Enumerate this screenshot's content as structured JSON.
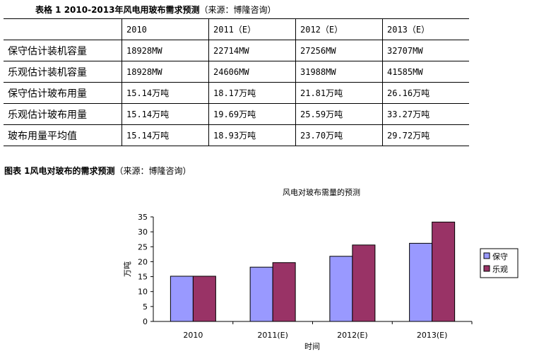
{
  "table_caption": {
    "bold": "表格 1 2010-2013年风电用玻布需求预测",
    "source": "（来源：博隆咨询）"
  },
  "table": {
    "headers": [
      "",
      "2010",
      "2011（E）",
      "2012（E）",
      "2013（E）"
    ],
    "rows": [
      [
        "保守估计装机容量",
        "18928MW",
        "22714MW",
        "27256MW",
        "32707MW"
      ],
      [
        "乐观估计装机容量",
        "18928MW",
        "24606MW",
        "31988MW",
        "41585MW"
      ],
      [
        "保守估计玻布用量",
        "15.14万吨",
        "18.17万吨",
        "21.81万吨",
        "26.16万吨"
      ],
      [
        "乐观估计玻布用量",
        "15.14万吨",
        "19.69万吨",
        "25.59万吨",
        "33.27万吨"
      ],
      [
        "玻布用量平均值",
        "15.14万吨",
        "18.93万吨",
        "23.70万吨",
        "29.72万吨"
      ]
    ]
  },
  "figure_caption": {
    "bold": "图表 1风电对玻布的需求预测",
    "source": "（来源：博隆咨询）"
  },
  "chart_data": {
    "type": "bar",
    "title": "风电对玻布需量的预测",
    "xlabel": "时间",
    "ylabel": "万吨",
    "categories": [
      "2010",
      "2011(E)",
      "2012(E)",
      "2013(E)"
    ],
    "ylim": [
      0,
      35
    ],
    "yticks": [
      0,
      5,
      10,
      15,
      20,
      25,
      30,
      35
    ],
    "series": [
      {
        "name": "保守",
        "values": [
          15.14,
          18.17,
          21.81,
          26.16
        ],
        "color": "#9999ff"
      },
      {
        "name": "乐观",
        "values": [
          15.14,
          19.69,
          25.59,
          33.27
        ],
        "color": "#993366"
      }
    ],
    "legend": "right",
    "grid": false
  }
}
